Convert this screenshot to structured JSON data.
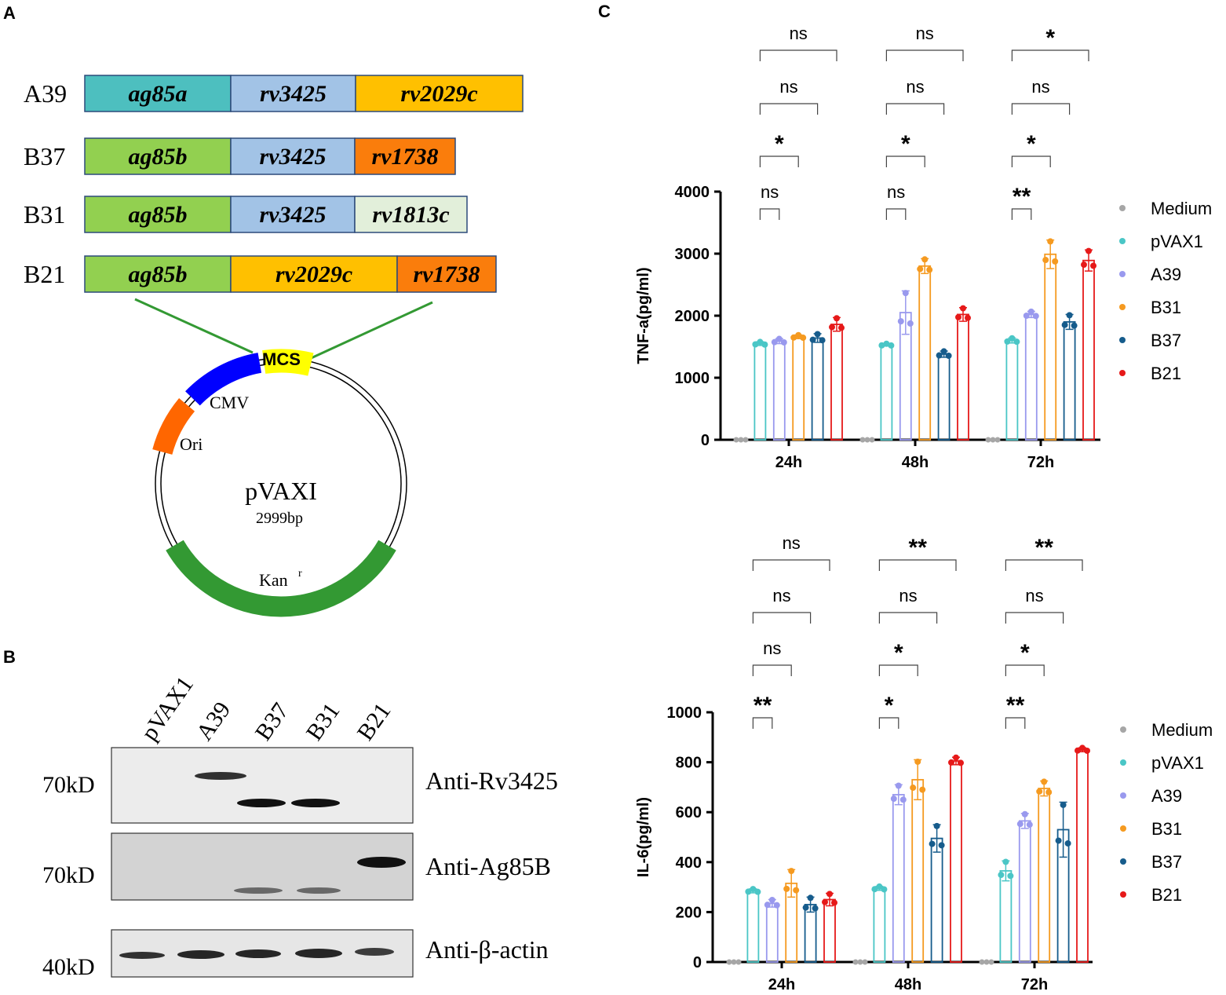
{
  "panels": {
    "a": "A",
    "b": "B",
    "c": "C"
  },
  "constructs": [
    {
      "name": "A39",
      "segments": [
        {
          "label": "ag85a",
          "color": "#4dbfbf"
        },
        {
          "label": "rv3425",
          "color": "#a2c3e6"
        },
        {
          "label": "rv2029c",
          "color": "#ffc000"
        }
      ]
    },
    {
      "name": "B37",
      "segments": [
        {
          "label": "ag85b",
          "color": "#92d050"
        },
        {
          "label": "rv3425",
          "color": "#a2c3e6"
        },
        {
          "label": "rv1738",
          "color": "#fa7d0c"
        }
      ]
    },
    {
      "name": "B31",
      "segments": [
        {
          "label": "ag85b",
          "color": "#92d050"
        },
        {
          "label": "rv3425",
          "color": "#a2c3e6"
        },
        {
          "label": "rv1813c",
          "color": "#e2efda"
        }
      ]
    },
    {
      "name": "B21",
      "segments": [
        {
          "label": "ag85b",
          "color": "#92d050"
        },
        {
          "label": "rv2029c",
          "color": "#ffc000"
        },
        {
          "label": "rv1738",
          "color": "#fa7d0c"
        }
      ]
    }
  ],
  "plasmid": {
    "name": "pVAXI",
    "size": "2999bp",
    "features": {
      "mcs": "MCS",
      "cmv": "CMV",
      "ori": "Ori",
      "kan": "Kan",
      "kan_sup": "r"
    },
    "colors": {
      "mcs": "#ffff00",
      "cmv": "#0000ff",
      "ori": "#ff6600",
      "kan": "#339933",
      "link": "#339933"
    }
  },
  "western": {
    "lanes": [
      "pVAX1",
      "A39",
      "B37",
      "B31",
      "B21"
    ],
    "blots": [
      {
        "antibody": "Anti-Rv3425",
        "size": "70kD"
      },
      {
        "antibody": "Anti-Ag85B",
        "size": "70kD"
      },
      {
        "antibody": "Anti-β-actin",
        "size": "40kD"
      }
    ]
  },
  "chart_data": [
    {
      "type": "bar",
      "ylabel": "TNF-a(pg/ml)",
      "categories": [
        "24h",
        "48h",
        "72h"
      ],
      "ylim": [
        0,
        4000
      ],
      "yticks": [
        0,
        1000,
        2000,
        3000,
        4000
      ],
      "series": [
        {
          "name": "Medium",
          "color": "#a6a6a6",
          "values": [
            0,
            0,
            0
          ],
          "sd": [
            0,
            0,
            0
          ]
        },
        {
          "name": "pVAX1",
          "color": "#4ac6c6",
          "values": [
            1550,
            1530,
            1600
          ],
          "sd": [
            30,
            20,
            40
          ]
        },
        {
          "name": "A39",
          "color": "#9999ee",
          "values": [
            1590,
            2050,
            2020
          ],
          "sd": [
            40,
            350,
            50
          ]
        },
        {
          "name": "B31",
          "color": "#f59a20",
          "values": [
            1660,
            2800,
            2990
          ],
          "sd": [
            30,
            120,
            230
          ]
        },
        {
          "name": "B37",
          "color": "#165c8c",
          "values": [
            1640,
            1380,
            1900
          ],
          "sd": [
            70,
            50,
            120
          ]
        },
        {
          "name": "B21",
          "color": "#e61919",
          "values": [
            1860,
            2020,
            2890
          ],
          "sd": [
            110,
            110,
            170
          ]
        }
      ],
      "significance": [
        {
          "labels": [
            "ns",
            "*",
            "ns",
            "ns"
          ]
        },
        {
          "labels": [
            "ns",
            "*",
            "ns",
            "ns"
          ]
        },
        {
          "labels": [
            "**",
            "*",
            "ns",
            "*"
          ]
        }
      ]
    },
    {
      "type": "bar",
      "ylabel": "IL-6(pg/ml)",
      "categories": [
        "24h",
        "48h",
        "72h"
      ],
      "ylim": [
        0,
        1000
      ],
      "yticks": [
        0,
        200,
        400,
        600,
        800,
        1000
      ],
      "series": [
        {
          "name": "Medium",
          "color": "#a6a6a6",
          "values": [
            0,
            0,
            0
          ],
          "sd": [
            0,
            0,
            0
          ]
        },
        {
          "name": "pVAX1",
          "color": "#4ac6c6",
          "values": [
            285,
            295,
            365
          ],
          "sd": [
            8,
            8,
            40
          ]
        },
        {
          "name": "A39",
          "color": "#9999ee",
          "values": [
            235,
            670,
            565
          ],
          "sd": [
            15,
            40,
            30
          ]
        },
        {
          "name": "B31",
          "color": "#f59a20",
          "values": [
            315,
            730,
            695
          ],
          "sd": [
            55,
            80,
            30
          ]
        },
        {
          "name": "B37",
          "color": "#165c8c",
          "values": [
            230,
            495,
            530
          ],
          "sd": [
            30,
            55,
            110
          ]
        },
        {
          "name": "B21",
          "color": "#e61919",
          "values": [
            250,
            805,
            850
          ],
          "sd": [
            25,
            15,
            8
          ]
        }
      ],
      "significance": [
        {
          "labels": [
            "**",
            "ns",
            "ns",
            "ns"
          ]
        },
        {
          "labels": [
            "*",
            "*",
            "ns",
            "**"
          ]
        },
        {
          "labels": [
            "**",
            "*",
            "ns",
            "**"
          ]
        }
      ]
    }
  ]
}
